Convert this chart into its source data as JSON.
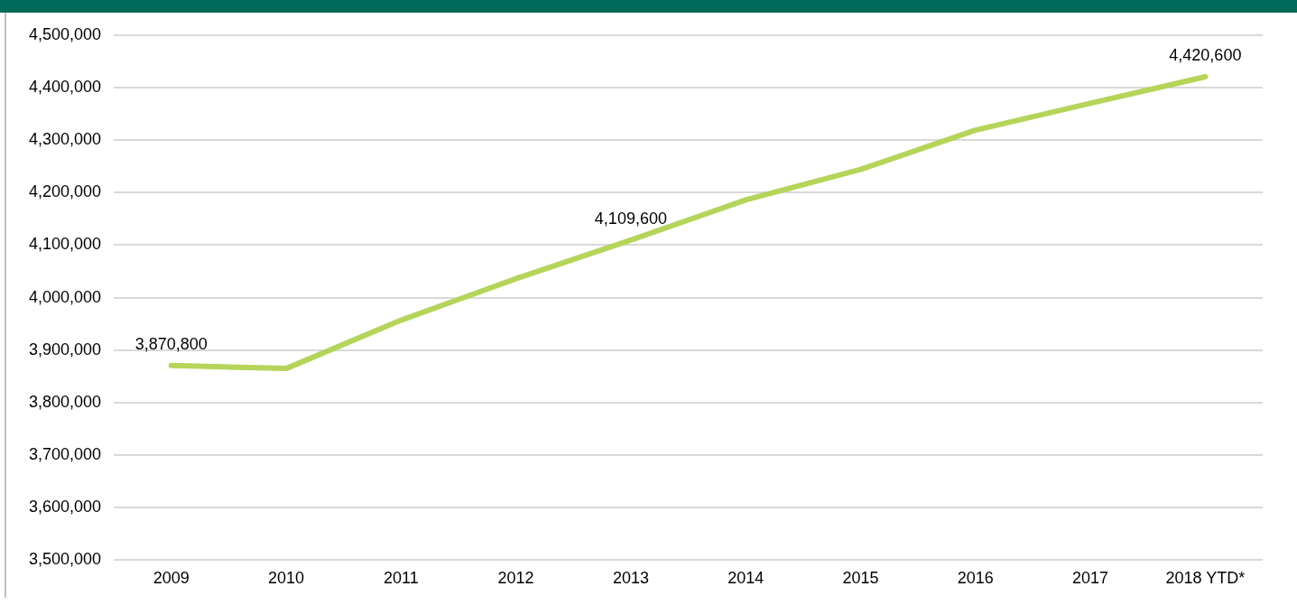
{
  "chart_data": {
    "type": "line",
    "categories": [
      "2009",
      "2010",
      "2011",
      "2012",
      "2013",
      "2014",
      "2015",
      "2016",
      "2017",
      "2018 YTD*"
    ],
    "series": [
      {
        "color": "#b5d55a",
        "values": [
          3870800,
          3865000,
          3957000,
          4036000,
          4109600,
          4186000,
          4244000,
          4319000,
          4370000,
          4420600
        ],
        "value_labels": [
          "3,870,800",
          null,
          null,
          null,
          "4,109,600",
          null,
          null,
          null,
          null,
          "4,420,600"
        ]
      }
    ],
    "ylim": [
      3500000,
      4500000
    ],
    "yticks": [
      {
        "value": 3500000,
        "label": "3,500,000"
      },
      {
        "value": 3600000,
        "label": "3,600,000"
      },
      {
        "value": 3700000,
        "label": "3,700,000"
      },
      {
        "value": 3800000,
        "label": "3,800,000"
      },
      {
        "value": 3900000,
        "label": "3,900,000"
      },
      {
        "value": 4000000,
        "label": "4,000,000"
      },
      {
        "value": 4100000,
        "label": "4,100,000"
      },
      {
        "value": 4200000,
        "label": "4,200,000"
      },
      {
        "value": 4300000,
        "label": "4,300,000"
      },
      {
        "value": 4400000,
        "label": "4,400,000"
      },
      {
        "value": 4500000,
        "label": "4,500,000"
      }
    ],
    "grid": "y",
    "legend": false,
    "marker": "none",
    "line_style": "solid"
  }
}
